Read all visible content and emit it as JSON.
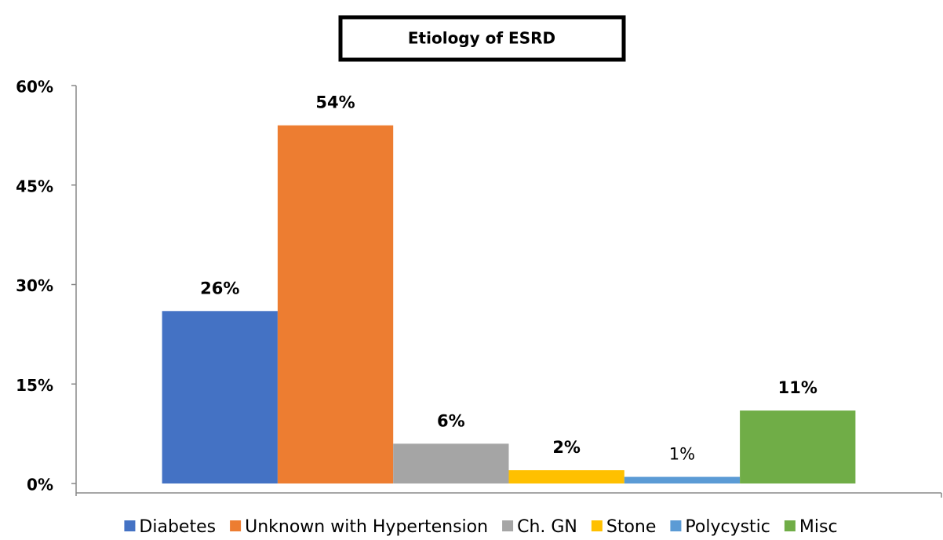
{
  "chart_data": {
    "type": "bar",
    "title": "Etiology of ESRD",
    "series": [
      {
        "name": "Diabetes",
        "color": "#4472c4",
        "values": [
          26
        ],
        "value_labels": [
          "26%"
        ]
      },
      {
        "name": "Unknown with Hypertension",
        "color": "#ed7d31",
        "values": [
          54
        ],
        "value_labels": [
          "54%"
        ]
      },
      {
        "name": "Ch. GN",
        "color": "#a5a5a5",
        "values": [
          6
        ],
        "value_labels": [
          "6%"
        ]
      },
      {
        "name": "Stone",
        "color": "#ffc000",
        "values": [
          2
        ],
        "value_labels": [
          "2%"
        ]
      },
      {
        "name": "Polycystic",
        "color": "#5b9bd5",
        "values": [
          1
        ],
        "value_labels": [
          "1%"
        ]
      },
      {
        "name": "Misc",
        "color": "#70ad47",
        "values": [
          11
        ],
        "value_labels": [
          "11%"
        ]
      }
    ],
    "ylim": [
      0,
      60
    ],
    "yticks": [
      {
        "value": 0,
        "label": "0%"
      },
      {
        "value": 15,
        "label": "15%"
      },
      {
        "value": 30,
        "label": "30%"
      },
      {
        "value": 45,
        "label": "45%"
      },
      {
        "value": 60,
        "label": "60%"
      }
    ],
    "grid": false,
    "legend": "bottom"
  }
}
